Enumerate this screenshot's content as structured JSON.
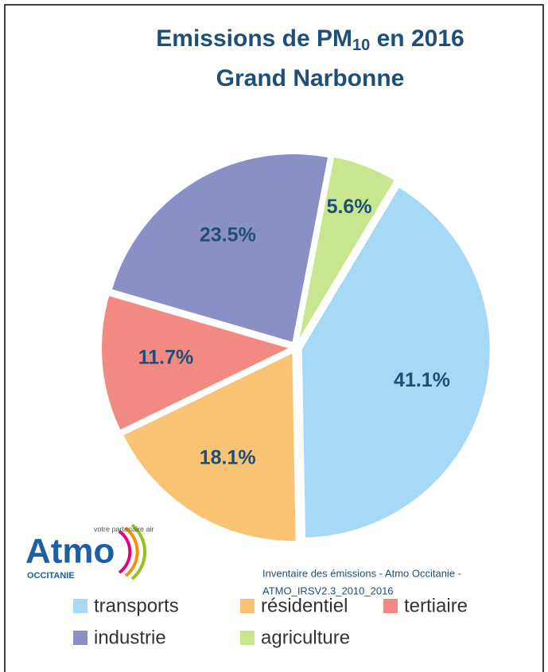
{
  "chart_data": {
    "type": "pie",
    "title": {
      "text": "Emissions  de PM",
      "subscript": "10",
      "suffix": " en 2016"
    },
    "subtitle": "Grand Narbonne",
    "categories": [
      "transports",
      "résidentiel",
      "tertiaire",
      "industrie",
      "agriculture"
    ],
    "values": [
      41.1,
      18.1,
      11.7,
      23.5,
      5.6
    ],
    "value_labels": [
      "41.1%",
      "18.1%",
      "11.7%",
      "23.5%",
      "5.6%"
    ],
    "colors": [
      "#a6d9f5",
      "#f9c374",
      "#f28a82",
      "#8a8fc6",
      "#c7e68d"
    ],
    "legend": "bottom",
    "source": [
      "Inventaire des émissions - Atmo Occitanie -",
      "ATMO_IRSV2.3_2010_2016"
    ],
    "logo": {
      "name": "Atmo",
      "region": "OCCITANIE",
      "tagline": "votre partenaire air"
    }
  }
}
